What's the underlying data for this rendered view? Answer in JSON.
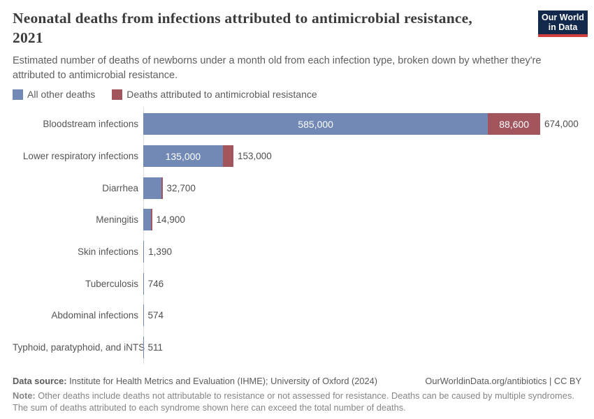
{
  "header": {
    "title_line1": "Neonatal deaths from infections attributed to antimicrobial resistance,",
    "title_line2": "2021",
    "subtitle": "Estimated number of deaths of newborns under a month old from each infection type, broken down by whether they're attributed to antimicrobial resistance.",
    "logo": {
      "line1": "Our World",
      "line2": "in Data",
      "bg_color": "#12294b",
      "accent_color": "#d13d3d"
    }
  },
  "legend": {
    "items": [
      {
        "label": "All other deaths",
        "color": "#7288b5"
      },
      {
        "label": "Deaths attributed to antimicrobial resistance",
        "color": "#a3555e"
      }
    ]
  },
  "chart_data": {
    "type": "bar",
    "orientation": "horizontal",
    "title": "Neonatal deaths from infections attributed to antimicrobial resistance, 2021",
    "unit": "deaths",
    "series_names": [
      "All other deaths",
      "Deaths attributed to antimicrobial resistance"
    ],
    "colors": {
      "other_deaths": "#7288b5",
      "amr_deaths": "#a3555e",
      "axis": "#dedede"
    },
    "rows": [
      {
        "category": "Bloodstream infections",
        "other": 585000,
        "other_label": "585,000",
        "amr": 88600,
        "amr_label": "88,600",
        "total": 674000,
        "total_label": "674,000"
      },
      {
        "category": "Lower respiratory infections",
        "other": 135000,
        "other_label": "135,000",
        "total": 153000,
        "total_label": "153,000"
      },
      {
        "category": "Diarrhea",
        "total": 32700,
        "total_label": "32,700",
        "has_amr_sliver": true
      },
      {
        "category": "Meningitis",
        "total": 14900,
        "total_label": "14,900",
        "has_amr_sliver": true
      },
      {
        "category": "Skin infections",
        "total": 1390,
        "total_label": "1,390"
      },
      {
        "category": "Tuberculosis",
        "total": 746,
        "total_label": "746"
      },
      {
        "category": "Abdominal infections",
        "total": 574,
        "total_label": "574"
      },
      {
        "category": "Typhoid, paratyphoid, and iNTS",
        "total": 511,
        "total_label": "511"
      }
    ]
  },
  "footer": {
    "datasource_label": "Data source:",
    "datasource_text": " Institute for Health Metrics and Evaluation (IHME); University of Oxford (2024)",
    "link_text": "OurWorldinData.org/antibiotics | CC BY",
    "note_label": "Note:",
    "note_text": " Other deaths include deaths not attributable to resistance or not assessed for resistance. Deaths can be caused by multiple syndromes. The sum of deaths attributed to each syndrome shown here can exceed the total number of deaths."
  }
}
